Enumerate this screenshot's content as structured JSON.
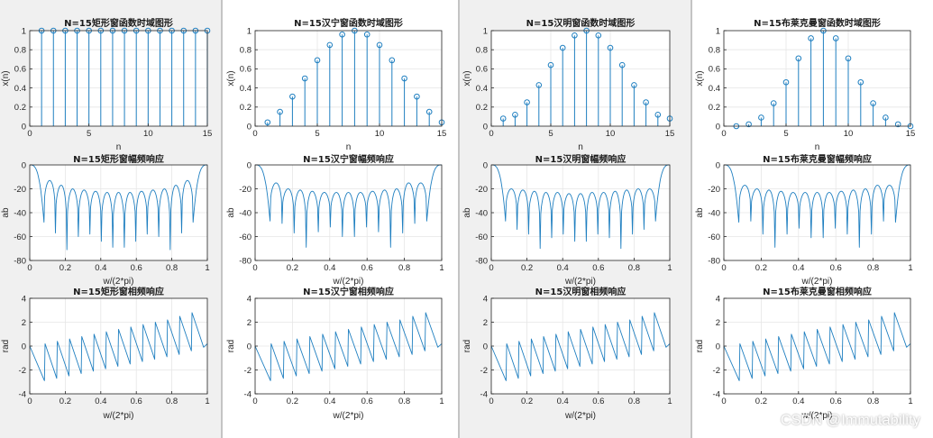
{
  "colors": {
    "line": "#1f7fc0",
    "panel_a": "#f0f0f0",
    "panel_b": "#ffffff",
    "axis": "#262626",
    "grid": "#e6e6e6"
  },
  "watermark": "CSDN @Immutability",
  "chart_data": [
    {
      "type": "line",
      "title": "N=15矩形窗函数时域图形",
      "style": "stem",
      "xlabel": "n",
      "ylabel": "x(n)",
      "xlim": [
        0,
        15
      ],
      "ylim": [
        0,
        1
      ],
      "xticks": [
        0,
        5,
        10,
        15
      ],
      "xtick_labels": [
        "0",
        "5",
        "10",
        "15"
      ],
      "yticks": [
        0,
        0.2,
        0.4,
        0.6,
        0.8,
        1
      ],
      "ytick_labels": [
        "0",
        "0.2",
        "0.4",
        "0.6",
        "0.8",
        "1"
      ],
      "x": [
        1,
        2,
        3,
        4,
        5,
        6,
        7,
        8,
        9,
        10,
        11,
        12,
        13,
        14,
        15
      ],
      "y": [
        1,
        1,
        1,
        1,
        1,
        1,
        1,
        1,
        1,
        1,
        1,
        1,
        1,
        1,
        1
      ]
    },
    {
      "type": "line",
      "title": "N=15矩形窗幅频响应",
      "style": "magnitude",
      "xlabel": "w/(2*pi)",
      "ylabel": "ab",
      "xlim": [
        0,
        1
      ],
      "ylim": [
        -80,
        0
      ],
      "xticks": [
        0,
        0.2,
        0.4,
        0.6,
        0.8,
        1
      ],
      "xtick_labels": [
        "0",
        "0.2",
        "0.4",
        "0.6",
        "0.8",
        "1"
      ],
      "yticks": [
        -80,
        -60,
        -40,
        -20,
        0
      ],
      "ytick_labels": [
        "-80",
        "-60",
        "-40",
        "-20",
        "0"
      ],
      "lobe_peaks": [
        -13,
        -17,
        -20,
        -21,
        -22,
        -23,
        -23,
        -23,
        -22,
        -21,
        -20,
        -17,
        -13
      ],
      "null_depths": [
        -48,
        -57,
        -71,
        -60,
        -58,
        -64,
        -69,
        -69,
        -64,
        -58,
        -60,
        -71,
        -57,
        -48
      ]
    },
    {
      "type": "line",
      "title": "N=15矩形窗相频响应",
      "style": "phase",
      "xlabel": "w/(2*pi)",
      "ylabel": "rad",
      "xlim": [
        0,
        1
      ],
      "ylim": [
        -4,
        4
      ],
      "xticks": [
        0,
        0.2,
        0.4,
        0.6,
        0.8,
        1
      ],
      "xtick_labels": [
        "0",
        "0.2",
        "0.4",
        "0.6",
        "0.8",
        "1"
      ],
      "yticks": [
        -4,
        -2,
        0,
        2,
        4
      ],
      "ytick_labels": [
        "-4",
        "-2",
        "0",
        "2",
        "4"
      ],
      "segment_tops": [
        0,
        0.2,
        0.4,
        0.6,
        0.8,
        1.0,
        1.2,
        1.4,
        1.6,
        1.8,
        2.0,
        2.2,
        2.5,
        2.8
      ]
    },
    {
      "type": "line",
      "title": "N=15汉宁窗函数时域图形",
      "style": "stem",
      "xlabel": "n",
      "ylabel": "x(n)",
      "xlim": [
        0,
        15
      ],
      "ylim": [
        0,
        1
      ],
      "xticks": [
        0,
        5,
        10,
        15
      ],
      "xtick_labels": [
        "0",
        "5",
        "10",
        "15"
      ],
      "yticks": [
        0,
        0.2,
        0.4,
        0.6,
        0.8,
        1
      ],
      "ytick_labels": [
        "0",
        "0.2",
        "0.4",
        "0.6",
        "0.8",
        "1"
      ],
      "x": [
        1,
        2,
        3,
        4,
        5,
        6,
        7,
        8,
        9,
        10,
        11,
        12,
        13,
        14,
        15
      ],
      "y": [
        0.04,
        0.15,
        0.31,
        0.5,
        0.69,
        0.85,
        0.96,
        1.0,
        0.96,
        0.85,
        0.69,
        0.5,
        0.31,
        0.15,
        0.04
      ]
    },
    {
      "type": "line",
      "title": "N=15汉宁窗幅频响应",
      "style": "magnitude",
      "xlabel": "w/(2*pi)",
      "ylabel": "ab",
      "xlim": [
        0,
        1
      ],
      "ylim": [
        -80,
        0
      ],
      "xticks": [
        0,
        0.2,
        0.4,
        0.6,
        0.8,
        1
      ],
      "xtick_labels": [
        "0",
        "0.2",
        "0.4",
        "0.6",
        "0.8",
        "1"
      ],
      "yticks": [
        -80,
        -60,
        -40,
        -20,
        0
      ],
      "ytick_labels": [
        "-80",
        "-60",
        "-40",
        "-20",
        "0"
      ],
      "lobe_peaks": [
        -15,
        -20,
        -21,
        -22,
        -23,
        -23,
        -23,
        -23,
        -22,
        -21,
        -20,
        -15
      ],
      "null_depths": [
        -47,
        -49,
        -57,
        -69,
        -56,
        -52,
        -60,
        -60,
        -52,
        -56,
        -69,
        -57,
        -49,
        -47
      ]
    },
    {
      "type": "line",
      "title": "N=15汉宁窗相频响应",
      "style": "phase",
      "xlabel": "w/(2*pi)",
      "ylabel": "rad",
      "xlim": [
        0,
        1
      ],
      "ylim": [
        -4,
        4
      ],
      "xticks": [
        0,
        0.2,
        0.4,
        0.6,
        0.8,
        1
      ],
      "xtick_labels": [
        "0",
        "0.2",
        "0.4",
        "0.6",
        "0.8",
        "1"
      ],
      "yticks": [
        -4,
        -2,
        0,
        2,
        4
      ],
      "ytick_labels": [
        "-4",
        "-2",
        "0",
        "2",
        "4"
      ],
      "segment_tops": [
        0,
        0.2,
        0.4,
        0.6,
        0.8,
        1.0,
        1.2,
        1.4,
        1.6,
        1.8,
        2.0,
        2.2,
        2.5,
        2.8
      ]
    },
    {
      "type": "line",
      "title": "N=15汉明窗函数时域图形",
      "style": "stem",
      "xlabel": "n",
      "ylabel": "x(n)",
      "xlim": [
        0,
        15
      ],
      "ylim": [
        0,
        1
      ],
      "xticks": [
        0,
        5,
        10,
        15
      ],
      "xtick_labels": [
        "0",
        "5",
        "10",
        "15"
      ],
      "yticks": [
        0,
        0.2,
        0.4,
        0.6,
        0.8,
        1
      ],
      "ytick_labels": [
        "0",
        "0.2",
        "0.4",
        "0.6",
        "0.8",
        "1"
      ],
      "x": [
        1,
        2,
        3,
        4,
        5,
        6,
        7,
        8,
        9,
        10,
        11,
        12,
        13,
        14,
        15
      ],
      "y": [
        0.08,
        0.12,
        0.25,
        0.43,
        0.64,
        0.82,
        0.95,
        1.0,
        0.95,
        0.82,
        0.64,
        0.43,
        0.25,
        0.12,
        0.08
      ]
    },
    {
      "type": "line",
      "title": "N=15汉明窗幅频响应",
      "style": "magnitude",
      "xlabel": "w/(2*pi)",
      "ylabel": "ab",
      "xlim": [
        0,
        1
      ],
      "ylim": [
        -80,
        0
      ],
      "xticks": [
        0,
        0.2,
        0.4,
        0.6,
        0.8,
        1
      ],
      "xtick_labels": [
        "0",
        "0.2",
        "0.4",
        "0.6",
        "0.8",
        "1"
      ],
      "yticks": [
        -80,
        -60,
        -40,
        -20,
        0
      ],
      "ytick_labels": [
        "-80",
        "-60",
        "-40",
        "-20",
        "0"
      ],
      "lobe_peaks": [
        -20,
        -21,
        -22,
        -23,
        -23,
        -24,
        -24,
        -23,
        -23,
        -22,
        -21,
        -20
      ],
      "null_depths": [
        -47,
        -54,
        -58,
        -70,
        -61,
        -58,
        -64,
        -64,
        -58,
        -61,
        -70,
        -58,
        -54,
        -47
      ]
    },
    {
      "type": "line",
      "title": "N=15汉明窗相频响应",
      "style": "phase",
      "xlabel": "w/(2*pi)",
      "ylabel": "rad",
      "xlim": [
        0,
        1
      ],
      "ylim": [
        -4,
        4
      ],
      "xticks": [
        0,
        0.2,
        0.4,
        0.6,
        0.8,
        1
      ],
      "xtick_labels": [
        "0",
        "0.2",
        "0.4",
        "0.6",
        "0.8",
        "1"
      ],
      "yticks": [
        -4,
        -2,
        0,
        2,
        4
      ],
      "ytick_labels": [
        "-4",
        "-2",
        "0",
        "2",
        "4"
      ],
      "segment_tops": [
        0,
        0.2,
        0.4,
        0.6,
        0.8,
        1.0,
        1.2,
        1.4,
        1.6,
        1.8,
        2.0,
        2.2,
        2.5,
        2.8
      ]
    },
    {
      "type": "line",
      "title": "N=15布莱克曼窗函数时域图形",
      "style": "stem",
      "xlabel": "n",
      "ylabel": "x(n)",
      "xlim": [
        0,
        15
      ],
      "ylim": [
        0,
        1
      ],
      "xticks": [
        0,
        5,
        10,
        15
      ],
      "xtick_labels": [
        "0",
        "5",
        "10",
        "15"
      ],
      "yticks": [
        0,
        0.2,
        0.4,
        0.6,
        0.8,
        1
      ],
      "ytick_labels": [
        "0",
        "0.2",
        "0.4",
        "0.6",
        "0.8",
        "1"
      ],
      "x": [
        1,
        2,
        3,
        4,
        5,
        6,
        7,
        8,
        9,
        10,
        11,
        12,
        13,
        14,
        15
      ],
      "y": [
        0,
        0.02,
        0.09,
        0.24,
        0.46,
        0.71,
        0.92,
        1.0,
        0.92,
        0.71,
        0.46,
        0.24,
        0.09,
        0.02,
        0
      ]
    },
    {
      "type": "line",
      "title": "N=15布莱克曼窗幅频响应",
      "style": "magnitude",
      "xlabel": "w/(2*pi)",
      "ylabel": "ab",
      "xlim": [
        0,
        1
      ],
      "ylim": [
        -80,
        0
      ],
      "xticks": [
        0,
        0.2,
        0.4,
        0.6,
        0.8,
        1
      ],
      "xtick_labels": [
        "0",
        "0.2",
        "0.4",
        "0.6",
        "0.8",
        "1"
      ],
      "yticks": [
        -80,
        -60,
        -40,
        -20,
        0
      ],
      "ytick_labels": [
        "-80",
        "-60",
        "-40",
        "-20",
        "0"
      ],
      "lobe_peaks": [
        -17,
        -20,
        -21,
        -22,
        -23,
        -23,
        -23,
        -23,
        -22,
        -21,
        -20,
        -17
      ],
      "null_depths": [
        -48,
        -47,
        -58,
        -69,
        -58,
        -53,
        -61,
        -61,
        -53,
        -58,
        -69,
        -58,
        -47,
        -48
      ]
    },
    {
      "type": "line",
      "title": "N=15布莱克曼窗相频响应",
      "style": "phase",
      "xlabel": "w/(2*pi)",
      "ylabel": "rad",
      "xlim": [
        0,
        1
      ],
      "ylim": [
        -4,
        4
      ],
      "xticks": [
        0,
        0.2,
        0.4,
        0.6,
        0.8,
        1
      ],
      "xtick_labels": [
        "0",
        "0.2",
        "0.4",
        "0.6",
        "0.8",
        "1"
      ],
      "yticks": [
        -4,
        -2,
        0,
        2,
        4
      ],
      "ytick_labels": [
        "-4",
        "-2",
        "0",
        "2",
        "4"
      ],
      "segment_tops": [
        0,
        0.2,
        0.4,
        0.6,
        0.8,
        1.0,
        1.2,
        1.4,
        1.6,
        1.8,
        2.0,
        2.2,
        2.5,
        2.8
      ]
    }
  ]
}
